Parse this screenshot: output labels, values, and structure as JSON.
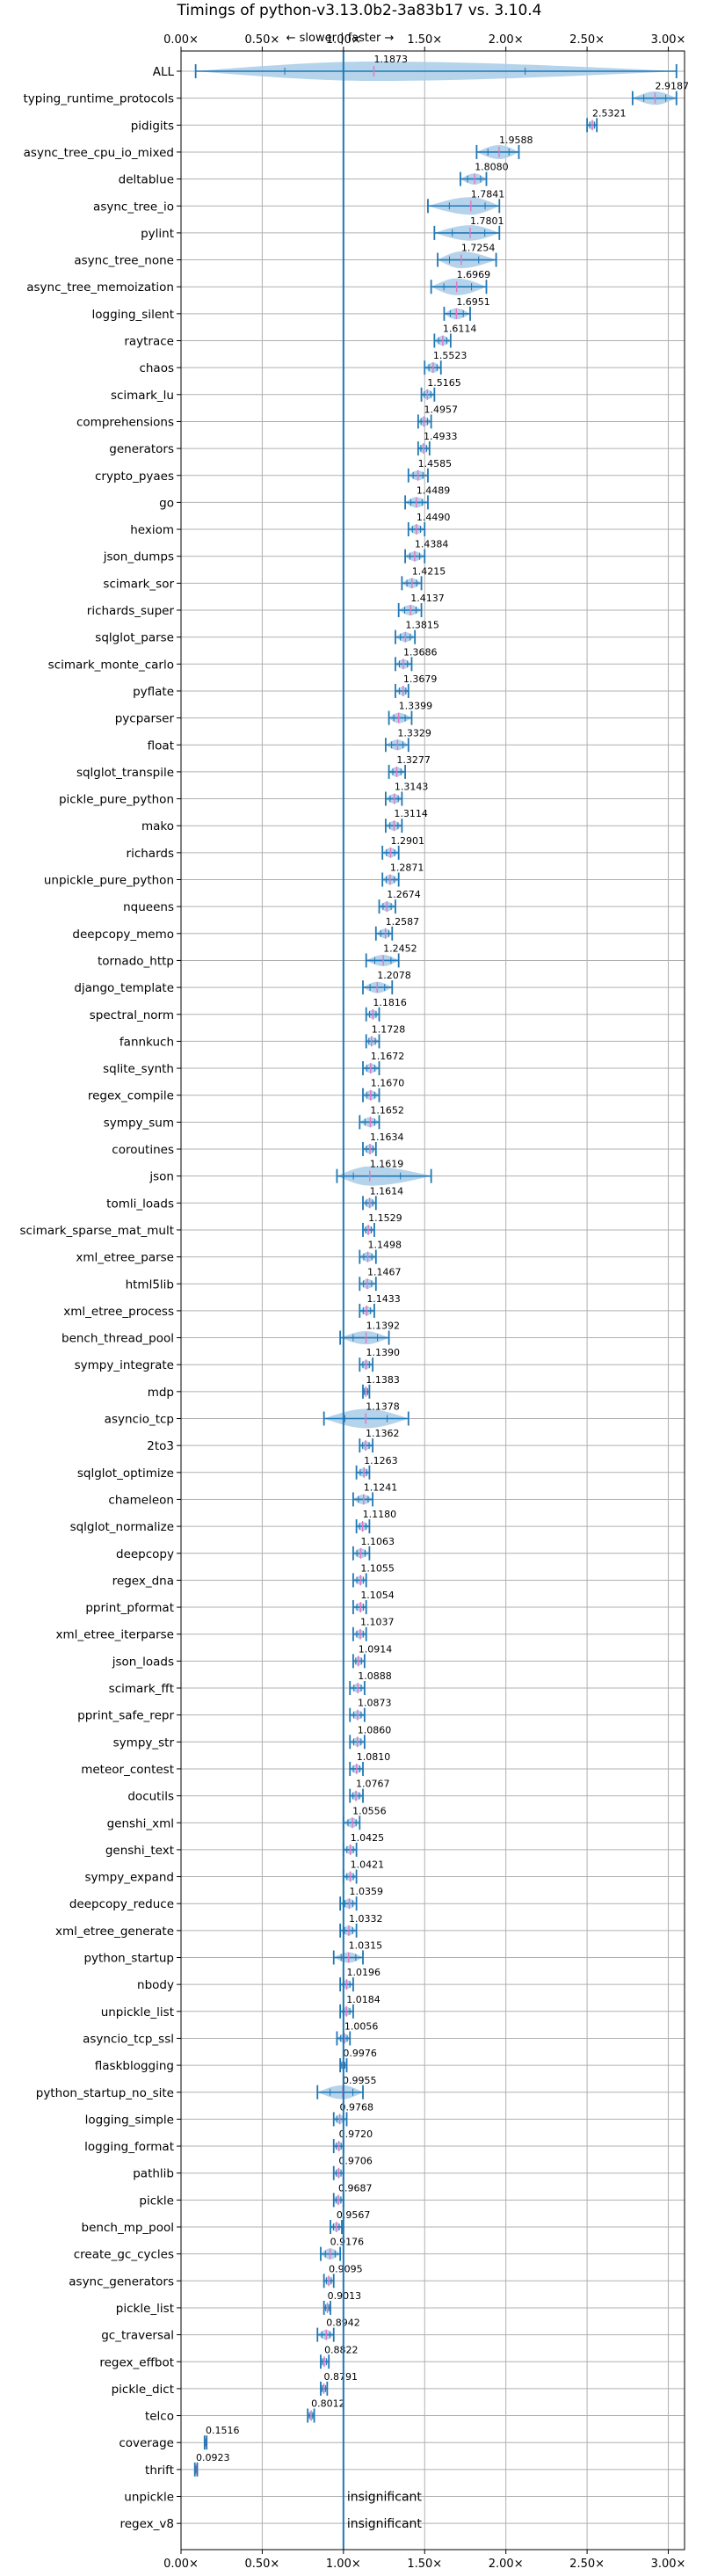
{
  "chart_data": {
    "type": "violin",
    "title": "Timings of python-v3.13.0b2-3a83b17 vs. 3.10.4",
    "direction_annotation": "← slower | faster →",
    "xlim": [
      0,
      3.1
    ],
    "x_ticks": [
      "0.00×",
      "0.50×",
      "1.00×",
      "1.50×",
      "2.00×",
      "2.50×",
      "3.00×"
    ],
    "x_tick_values": [
      0,
      0.5,
      1.0,
      1.5,
      2.0,
      2.5,
      3.0
    ],
    "reference_line": 1.0,
    "grid": true,
    "colors": {
      "violin": "#a8cbe8",
      "line": "#1f77b4",
      "mean": "#e377c2"
    },
    "benchmarks": [
      {
        "name": "ALL",
        "value": 1.1873,
        "label": "1.1873",
        "lo": 0.09,
        "hi": 3.05,
        "spread": 0.35
      },
      {
        "name": "typing_runtime_protocols",
        "value": 2.9187,
        "label": "2.9187",
        "lo": 2.78,
        "hi": 3.05,
        "spread": 0.09
      },
      {
        "name": "pidigits",
        "value": 2.5321,
        "label": "2.5321",
        "lo": 2.5,
        "hi": 2.56,
        "spread": 0.03
      },
      {
        "name": "async_tree_cpu_io_mixed",
        "value": 1.9588,
        "label": "1.9588",
        "lo": 1.82,
        "hi": 2.08,
        "spread": 0.1
      },
      {
        "name": "deltablue",
        "value": 1.808,
        "label": "1.8080",
        "lo": 1.72,
        "hi": 1.88,
        "spread": 0.06
      },
      {
        "name": "async_tree_io",
        "value": 1.7841,
        "label": "1.7841",
        "lo": 1.52,
        "hi": 1.96,
        "spread": 0.15
      },
      {
        "name": "pylint",
        "value": 1.7801,
        "label": "1.7801",
        "lo": 1.56,
        "hi": 1.96,
        "spread": 0.12
      },
      {
        "name": "async_tree_none",
        "value": 1.7254,
        "label": "1.7254",
        "lo": 1.58,
        "hi": 1.94,
        "spread": 0.14
      },
      {
        "name": "async_tree_memoization",
        "value": 1.6969,
        "label": "1.6969",
        "lo": 1.54,
        "hi": 1.88,
        "spread": 0.14
      },
      {
        "name": "logging_silent",
        "value": 1.6951,
        "label": "1.6951",
        "lo": 1.62,
        "hi": 1.78,
        "spread": 0.06
      },
      {
        "name": "raytrace",
        "value": 1.6114,
        "label": "1.6114",
        "lo": 1.56,
        "hi": 1.66,
        "spread": 0.04
      },
      {
        "name": "chaos",
        "value": 1.5523,
        "label": "1.5523",
        "lo": 1.5,
        "hi": 1.6,
        "spread": 0.05
      },
      {
        "name": "scimark_lu",
        "value": 1.5165,
        "label": "1.5165",
        "lo": 1.48,
        "hi": 1.56,
        "spread": 0.04
      },
      {
        "name": "comprehensions",
        "value": 1.4957,
        "label": "1.4957",
        "lo": 1.46,
        "hi": 1.54,
        "spread": 0.04
      },
      {
        "name": "generators",
        "value": 1.4933,
        "label": "1.4933",
        "lo": 1.46,
        "hi": 1.53,
        "spread": 0.04
      },
      {
        "name": "crypto_pyaes",
        "value": 1.4585,
        "label": "1.4585",
        "lo": 1.4,
        "hi": 1.52,
        "spread": 0.04
      },
      {
        "name": "go",
        "value": 1.4489,
        "label": "1.4489",
        "lo": 1.38,
        "hi": 1.52,
        "spread": 0.05
      },
      {
        "name": "hexiom",
        "value": 1.449,
        "label": "1.4490",
        "lo": 1.4,
        "hi": 1.5,
        "spread": 0.04
      },
      {
        "name": "json_dumps",
        "value": 1.4384,
        "label": "1.4384",
        "lo": 1.38,
        "hi": 1.5,
        "spread": 0.04
      },
      {
        "name": "scimark_sor",
        "value": 1.4215,
        "label": "1.4215",
        "lo": 1.36,
        "hi": 1.48,
        "spread": 0.04
      },
      {
        "name": "richards_super",
        "value": 1.4137,
        "label": "1.4137",
        "lo": 1.34,
        "hi": 1.48,
        "spread": 0.05
      },
      {
        "name": "sqlglot_parse",
        "value": 1.3815,
        "label": "1.3815",
        "lo": 1.32,
        "hi": 1.44,
        "spread": 0.04
      },
      {
        "name": "scimark_monte_carlo",
        "value": 1.3686,
        "label": "1.3686",
        "lo": 1.32,
        "hi": 1.42,
        "spread": 0.04
      },
      {
        "name": "pyflate",
        "value": 1.3679,
        "label": "1.3679",
        "lo": 1.32,
        "hi": 1.4,
        "spread": 0.03
      },
      {
        "name": "pycparser",
        "value": 1.3399,
        "label": "1.3399",
        "lo": 1.28,
        "hi": 1.42,
        "spread": 0.05
      },
      {
        "name": "float",
        "value": 1.3329,
        "label": "1.3329",
        "lo": 1.26,
        "hi": 1.4,
        "spread": 0.05
      },
      {
        "name": "sqlglot_transpile",
        "value": 1.3277,
        "label": "1.3277",
        "lo": 1.28,
        "hi": 1.38,
        "spread": 0.04
      },
      {
        "name": "pickle_pure_python",
        "value": 1.3143,
        "label": "1.3143",
        "lo": 1.26,
        "hi": 1.36,
        "spread": 0.04
      },
      {
        "name": "mako",
        "value": 1.3114,
        "label": "1.3114",
        "lo": 1.26,
        "hi": 1.36,
        "spread": 0.04
      },
      {
        "name": "richards",
        "value": 1.2901,
        "label": "1.2901",
        "lo": 1.24,
        "hi": 1.34,
        "spread": 0.04
      },
      {
        "name": "unpickle_pure_python",
        "value": 1.2871,
        "label": "1.2871",
        "lo": 1.24,
        "hi": 1.34,
        "spread": 0.04
      },
      {
        "name": "nqueens",
        "value": 1.2674,
        "label": "1.2674",
        "lo": 1.22,
        "hi": 1.32,
        "spread": 0.04
      },
      {
        "name": "deepcopy_memo",
        "value": 1.2587,
        "label": "1.2587",
        "lo": 1.2,
        "hi": 1.3,
        "spread": 0.04
      },
      {
        "name": "tornado_http",
        "value": 1.2452,
        "label": "1.2452",
        "lo": 1.14,
        "hi": 1.34,
        "spread": 0.06
      },
      {
        "name": "django_template",
        "value": 1.2078,
        "label": "1.2078",
        "lo": 1.12,
        "hi": 1.3,
        "spread": 0.06
      },
      {
        "name": "spectral_norm",
        "value": 1.1816,
        "label": "1.1816",
        "lo": 1.14,
        "hi": 1.22,
        "spread": 0.03
      },
      {
        "name": "fannkuch",
        "value": 1.1728,
        "label": "1.1728",
        "lo": 1.14,
        "hi": 1.22,
        "spread": 0.03
      },
      {
        "name": "sqlite_synth",
        "value": 1.1672,
        "label": "1.1672",
        "lo": 1.12,
        "hi": 1.22,
        "spread": 0.04
      },
      {
        "name": "regex_compile",
        "value": 1.167,
        "label": "1.1670",
        "lo": 1.12,
        "hi": 1.22,
        "spread": 0.04
      },
      {
        "name": "sympy_sum",
        "value": 1.1652,
        "label": "1.1652",
        "lo": 1.1,
        "hi": 1.22,
        "spread": 0.04
      },
      {
        "name": "coroutines",
        "value": 1.1634,
        "label": "1.1634",
        "lo": 1.12,
        "hi": 1.2,
        "spread": 0.04
      },
      {
        "name": "json",
        "value": 1.1619,
        "label": "1.1619",
        "lo": 0.96,
        "hi": 1.54,
        "spread": 0.18
      },
      {
        "name": "tomli_loads",
        "value": 1.1614,
        "label": "1.1614",
        "lo": 1.12,
        "hi": 1.2,
        "spread": 0.04
      },
      {
        "name": "scimark_sparse_mat_mult",
        "value": 1.1529,
        "label": "1.1529",
        "lo": 1.12,
        "hi": 1.19,
        "spread": 0.03
      },
      {
        "name": "xml_etree_parse",
        "value": 1.1498,
        "label": "1.1498",
        "lo": 1.1,
        "hi": 1.2,
        "spread": 0.04
      },
      {
        "name": "html5lib",
        "value": 1.1467,
        "label": "1.1467",
        "lo": 1.1,
        "hi": 1.2,
        "spread": 0.04
      },
      {
        "name": "xml_etree_process",
        "value": 1.1433,
        "label": "1.1433",
        "lo": 1.1,
        "hi": 1.19,
        "spread": 0.03
      },
      {
        "name": "bench_thread_pool",
        "value": 1.1392,
        "label": "1.1392",
        "lo": 0.98,
        "hi": 1.28,
        "spread": 0.09
      },
      {
        "name": "sympy_integrate",
        "value": 1.139,
        "label": "1.1390",
        "lo": 1.1,
        "hi": 1.18,
        "spread": 0.03
      },
      {
        "name": "mdp",
        "value": 1.1383,
        "label": "1.1383",
        "lo": 1.12,
        "hi": 1.16,
        "spread": 0.02
      },
      {
        "name": "asyncio_tcp",
        "value": 1.1378,
        "label": "1.1378",
        "lo": 0.88,
        "hi": 1.4,
        "spread": 0.2
      },
      {
        "name": "2to3",
        "value": 1.1362,
        "label": "1.1362",
        "lo": 1.1,
        "hi": 1.18,
        "spread": 0.03
      },
      {
        "name": "sqlglot_optimize",
        "value": 1.1263,
        "label": "1.1263",
        "lo": 1.08,
        "hi": 1.16,
        "spread": 0.03
      },
      {
        "name": "chameleon",
        "value": 1.1241,
        "label": "1.1241",
        "lo": 1.06,
        "hi": 1.18,
        "spread": 0.04
      },
      {
        "name": "sqlglot_normalize",
        "value": 1.118,
        "label": "1.1180",
        "lo": 1.08,
        "hi": 1.16,
        "spread": 0.03
      },
      {
        "name": "deepcopy",
        "value": 1.1063,
        "label": "1.1063",
        "lo": 1.06,
        "hi": 1.16,
        "spread": 0.04
      },
      {
        "name": "regex_dna",
        "value": 1.1055,
        "label": "1.1055",
        "lo": 1.06,
        "hi": 1.14,
        "spread": 0.03
      },
      {
        "name": "pprint_pformat",
        "value": 1.1054,
        "label": "1.1054",
        "lo": 1.06,
        "hi": 1.14,
        "spread": 0.03
      },
      {
        "name": "xml_etree_iterparse",
        "value": 1.1037,
        "label": "1.1037",
        "lo": 1.06,
        "hi": 1.14,
        "spread": 0.03
      },
      {
        "name": "json_loads",
        "value": 1.0914,
        "label": "1.0914",
        "lo": 1.06,
        "hi": 1.13,
        "spread": 0.03
      },
      {
        "name": "scimark_fft",
        "value": 1.0888,
        "label": "1.0888",
        "lo": 1.04,
        "hi": 1.13,
        "spread": 0.03
      },
      {
        "name": "pprint_safe_repr",
        "value": 1.0873,
        "label": "1.0873",
        "lo": 1.04,
        "hi": 1.13,
        "spread": 0.03
      },
      {
        "name": "sympy_str",
        "value": 1.086,
        "label": "1.0860",
        "lo": 1.04,
        "hi": 1.13,
        "spread": 0.03
      },
      {
        "name": "meteor_contest",
        "value": 1.081,
        "label": "1.0810",
        "lo": 1.04,
        "hi": 1.12,
        "spread": 0.03
      },
      {
        "name": "docutils",
        "value": 1.0767,
        "label": "1.0767",
        "lo": 1.04,
        "hi": 1.12,
        "spread": 0.03
      },
      {
        "name": "genshi_xml",
        "value": 1.0556,
        "label": "1.0556",
        "lo": 1.0,
        "hi": 1.1,
        "spread": 0.04
      },
      {
        "name": "genshi_text",
        "value": 1.0425,
        "label": "1.0425",
        "lo": 1.0,
        "hi": 1.08,
        "spread": 0.03
      },
      {
        "name": "sympy_expand",
        "value": 1.0421,
        "label": "1.0421",
        "lo": 1.0,
        "hi": 1.08,
        "spread": 0.03
      },
      {
        "name": "deepcopy_reduce",
        "value": 1.0359,
        "label": "1.0359",
        "lo": 0.98,
        "hi": 1.08,
        "spread": 0.04
      },
      {
        "name": "xml_etree_generate",
        "value": 1.0332,
        "label": "1.0332",
        "lo": 0.98,
        "hi": 1.08,
        "spread": 0.04
      },
      {
        "name": "python_startup",
        "value": 1.0315,
        "label": "1.0315",
        "lo": 0.94,
        "hi": 1.12,
        "spread": 0.05
      },
      {
        "name": "nbody",
        "value": 1.0196,
        "label": "1.0196",
        "lo": 0.98,
        "hi": 1.06,
        "spread": 0.03
      },
      {
        "name": "unpickle_list",
        "value": 1.0184,
        "label": "1.0184",
        "lo": 0.98,
        "hi": 1.06,
        "spread": 0.03
      },
      {
        "name": "asyncio_tcp_ssl",
        "value": 1.0056,
        "label": "1.0056",
        "lo": 0.96,
        "hi": 1.04,
        "spread": 0.03
      },
      {
        "name": "flaskblogging",
        "value": 0.9976,
        "label": "0.9976",
        "lo": 0.98,
        "hi": 1.02,
        "spread": 0.02
      },
      {
        "name": "python_startup_no_site",
        "value": 0.9955,
        "label": "0.9955",
        "lo": 0.84,
        "hi": 1.12,
        "spread": 0.1
      },
      {
        "name": "logging_simple",
        "value": 0.9768,
        "label": "0.9768",
        "lo": 0.94,
        "hi": 1.02,
        "spread": 0.03
      },
      {
        "name": "logging_format",
        "value": 0.972,
        "label": "0.9720",
        "lo": 0.94,
        "hi": 1.0,
        "spread": 0.03
      },
      {
        "name": "pathlib",
        "value": 0.9706,
        "label": "0.9706",
        "lo": 0.94,
        "hi": 1.0,
        "spread": 0.03
      },
      {
        "name": "pickle",
        "value": 0.9687,
        "label": "0.9687",
        "lo": 0.94,
        "hi": 1.0,
        "spread": 0.03
      },
      {
        "name": "bench_mp_pool",
        "value": 0.9567,
        "label": "0.9567",
        "lo": 0.92,
        "hi": 0.99,
        "spread": 0.03
      },
      {
        "name": "create_gc_cycles",
        "value": 0.9176,
        "label": "0.9176",
        "lo": 0.86,
        "hi": 0.98,
        "spread": 0.06
      },
      {
        "name": "async_generators",
        "value": 0.9095,
        "label": "0.9095",
        "lo": 0.88,
        "hi": 0.94,
        "spread": 0.03
      },
      {
        "name": "pickle_list",
        "value": 0.9013,
        "label": "0.9013",
        "lo": 0.88,
        "hi": 0.92,
        "spread": 0.02
      },
      {
        "name": "gc_traversal",
        "value": 0.8942,
        "label": "0.8942",
        "lo": 0.84,
        "hi": 0.94,
        "spread": 0.04
      },
      {
        "name": "regex_effbot",
        "value": 0.8822,
        "label": "0.8822",
        "lo": 0.86,
        "hi": 0.91,
        "spread": 0.02
      },
      {
        "name": "pickle_dict",
        "value": 0.8791,
        "label": "0.8791",
        "lo": 0.86,
        "hi": 0.9,
        "spread": 0.02
      },
      {
        "name": "telco",
        "value": 0.8012,
        "label": "0.8012",
        "lo": 0.78,
        "hi": 0.82,
        "spread": 0.02
      },
      {
        "name": "coverage",
        "value": 0.1516,
        "label": "0.1516",
        "lo": 0.145,
        "hi": 0.158,
        "spread": 0.01
      },
      {
        "name": "thrift",
        "value": 0.0923,
        "label": "0.0923",
        "lo": 0.085,
        "hi": 0.1,
        "spread": 0.01
      },
      {
        "name": "unpickle",
        "value": null,
        "label": "insignificant"
      },
      {
        "name": "regex_v8",
        "value": null,
        "label": "insignificant"
      }
    ]
  }
}
